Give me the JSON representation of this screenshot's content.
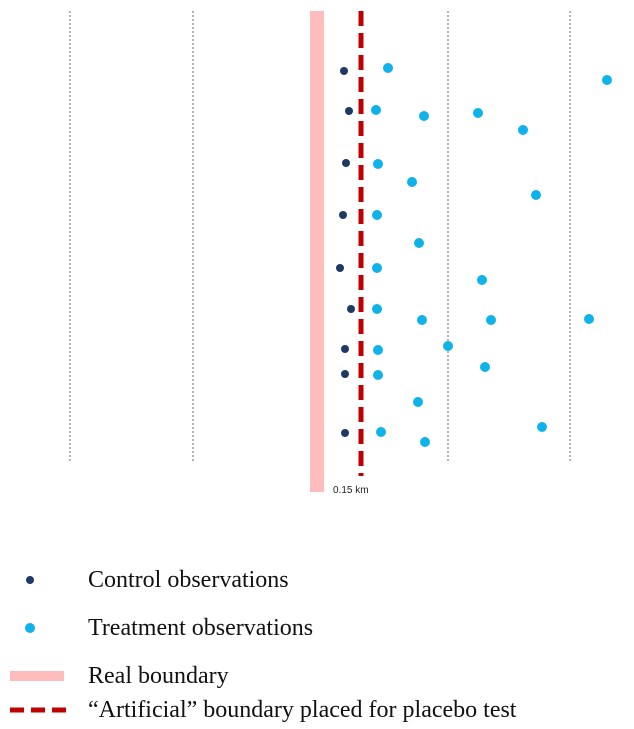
{
  "distance_label": "0.15 km",
  "colors": {
    "control": "#1f3864",
    "treatment": "#10b2ea",
    "real_boundary": "#ffbcbc",
    "artificial_boundary": "#c00000",
    "grid": "#9a9a9a"
  },
  "legend": {
    "control": "Control observations",
    "treatment": "Treatment observations",
    "real": "Real boundary",
    "artificial": "“Artificial” boundary placed for placebo test"
  }
}
